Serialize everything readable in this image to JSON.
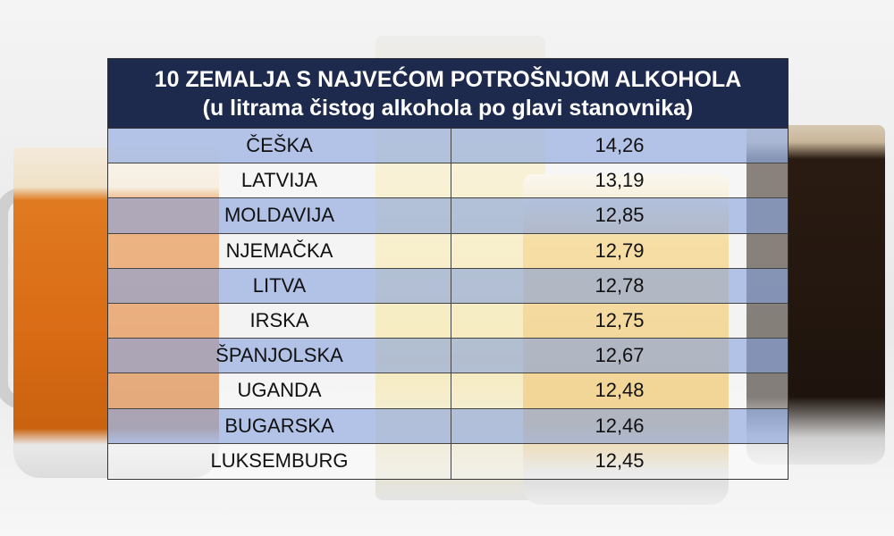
{
  "header": {
    "title": "10 ZEMALJA S NAJVEĆOM POTROŠNJOM ALKOHOLA",
    "subtitle": "(u litrama čistog alkohola po glavi stanovnika)"
  },
  "table": {
    "rows": [
      [
        "ČEŠKA",
        "14,26"
      ],
      [
        "LATVIJA",
        "13,19"
      ],
      [
        "MOLDAVIJA",
        "12,85"
      ],
      [
        "NJEMAČKA",
        "12,79"
      ],
      [
        "LITVA",
        "12,78"
      ],
      [
        "IRSKA",
        "12,75"
      ],
      [
        "ŠPANJOLSKA",
        "12,67"
      ],
      [
        "UGANDA",
        "12,48"
      ],
      [
        "BUGARSKA",
        "12,46"
      ],
      [
        "LUKSEMBURG",
        "12,45"
      ]
    ]
  }
}
